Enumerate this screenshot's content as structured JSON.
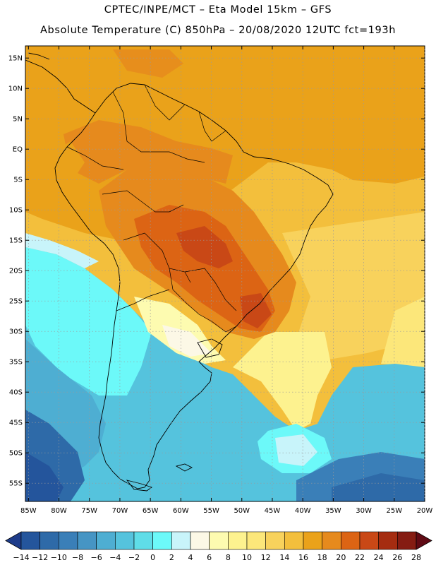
{
  "header": {
    "line1": "CPTEC/INPE/MCT –  Eta Model 15km – GFS",
    "line2": "Absolute Temperature (C) 850hPa – 20/08/2020 12UTC fct=193h"
  },
  "axes": {
    "lat_labels": [
      "15N",
      "10N",
      "5N",
      "EQ",
      "5S",
      "10S",
      "15S",
      "20S",
      "25S",
      "30S",
      "35S",
      "40S",
      "45S",
      "50S",
      "55S"
    ],
    "lat_values": [
      15,
      10,
      5,
      0,
      -5,
      -10,
      -15,
      -20,
      -25,
      -30,
      -35,
      -40,
      -45,
      -50,
      -55
    ],
    "lon_labels": [
      "85W",
      "80W",
      "75W",
      "70W",
      "65W",
      "60W",
      "55W",
      "50W",
      "45W",
      "40W",
      "35W",
      "30W",
      "25W",
      "20W"
    ],
    "lon_values": [
      -85,
      -80,
      -75,
      -70,
      -65,
      -60,
      -55,
      -50,
      -45,
      -40,
      -35,
      -30,
      -25,
      -20
    ],
    "lon_range": [
      -85.5,
      -20
    ],
    "lat_range": [
      -58,
      17
    ],
    "grid": "dotted"
  },
  "colorbar": {
    "labels": [
      "-14",
      "-12",
      "-10",
      "-8",
      "-6",
      "-4",
      "-2",
      "0",
      "2",
      "4",
      "6",
      "8",
      "10",
      "12",
      "14",
      "16",
      "18",
      "20",
      "22",
      "24",
      "26",
      "28"
    ],
    "colors": [
      "#1e3c8a",
      "#24559c",
      "#2e6aa8",
      "#3a7fb8",
      "#4695c4",
      "#4eaed2",
      "#55c3dd",
      "#5fdde8",
      "#6cf9f9",
      "#c8f4fa",
      "#fcf8e6",
      "#fdfbb0",
      "#fdf28f",
      "#fce77a",
      "#f8d25c",
      "#f3bf3c",
      "#eaa21a",
      "#e68a1d",
      "#dc6414",
      "#c94816",
      "#a52c10",
      "#851c12",
      "#600a14"
    ]
  }
}
